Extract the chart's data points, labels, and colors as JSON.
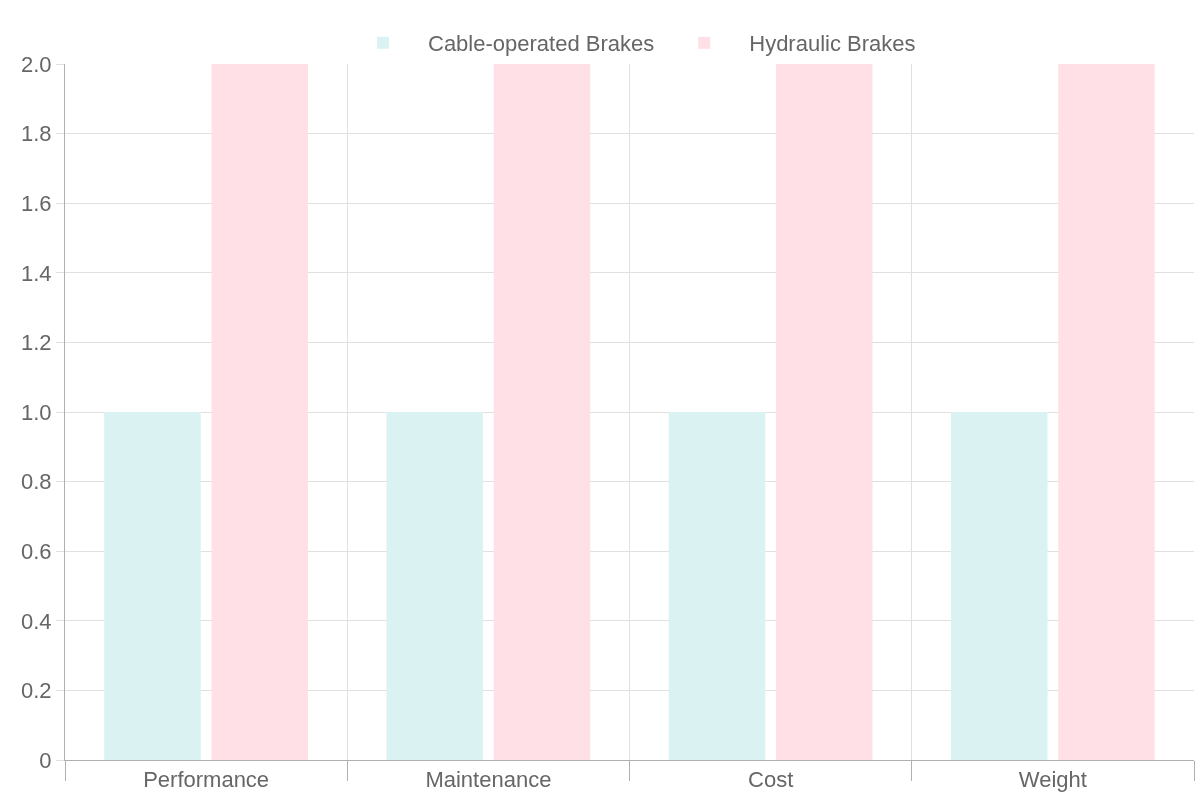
{
  "chart_data": {
    "type": "bar",
    "categories": [
      "Performance",
      "Maintenance",
      "Cost",
      "Weight"
    ],
    "series": [
      {
        "name": "Cable-operated Brakes",
        "color": "#dbf2f2",
        "values": [
          1,
          1,
          1,
          1
        ]
      },
      {
        "name": "Hydraulic Brakes",
        "color": "#ffe0e6",
        "values": [
          2,
          2,
          2,
          2
        ]
      }
    ],
    "ylim": [
      0,
      2
    ],
    "yticks": [
      0,
      0.2,
      0.4,
      0.6,
      0.8,
      {
        "value": 1,
        "label": "1.0"
      },
      1.2,
      1.4,
      1.6,
      1.8,
      {
        "value": 2,
        "label": "2.0"
      }
    ],
    "grid": true,
    "legend": "top"
  }
}
